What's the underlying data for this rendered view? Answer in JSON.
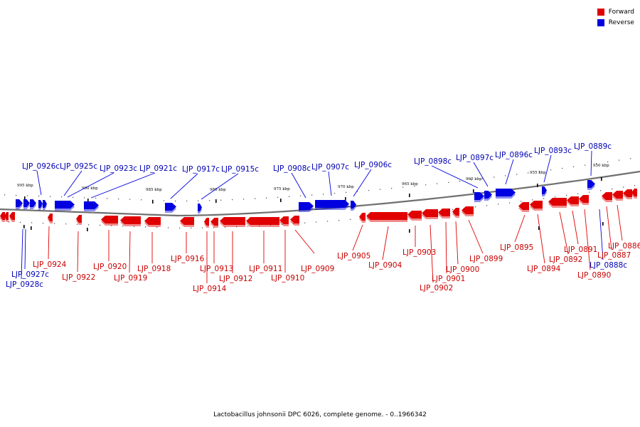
{
  "colors": {
    "forward": "#e00000",
    "reverse": "#0000e0",
    "forward_label": "#c80000",
    "reverse_label": "#0000b4",
    "backbone": "#707070"
  },
  "legend": {
    "forward": "Forward",
    "reverse": "Reverse"
  },
  "caption": "Lactobacillus johnsonii DPC 6026, complete genome. - 0..1966342",
  "ticks": [
    "995 kbp",
    "990 kbp",
    "985 kbp",
    "980 kbp",
    "975 kbp",
    "970 kbp",
    "965 kbp",
    "960 kbp",
    "955 kbp",
    "950 kbp"
  ],
  "reverse_genes": [
    "LJP_0926c",
    "LJP_0925c",
    "LJP_0923c",
    "LJP_0921c",
    "LJP_0917c",
    "LJP_0915c",
    "LJP_0908c",
    "LJP_0907c",
    "LJP_0906c",
    "LJP_0898c",
    "LJP_0897c",
    "LJP_0896c",
    "LJP_0893c",
    "LJP_0889c",
    "LJP_0927c",
    "LJP_0928c",
    "LJP_0888c"
  ],
  "forward_genes": [
    "LJP_0924",
    "LJP_0922",
    "LJP_0920",
    "LJP_0919",
    "LJP_0918",
    "LJP_0916",
    "LJP_0913",
    "LJP_0914",
    "LJP_0912",
    "LJP_0911",
    "LJP_0910",
    "LJP_0909",
    "LJP_0905",
    "LJP_0904",
    "LJP_0903",
    "LJP_0902",
    "LJP_0901",
    "LJP_0900",
    "LJP_0899",
    "LJP_0895",
    "LJP_0894",
    "LJP_0892",
    "LJP_0891",
    "LJP_0890",
    "LJP_0887",
    "LJP_0886"
  ]
}
